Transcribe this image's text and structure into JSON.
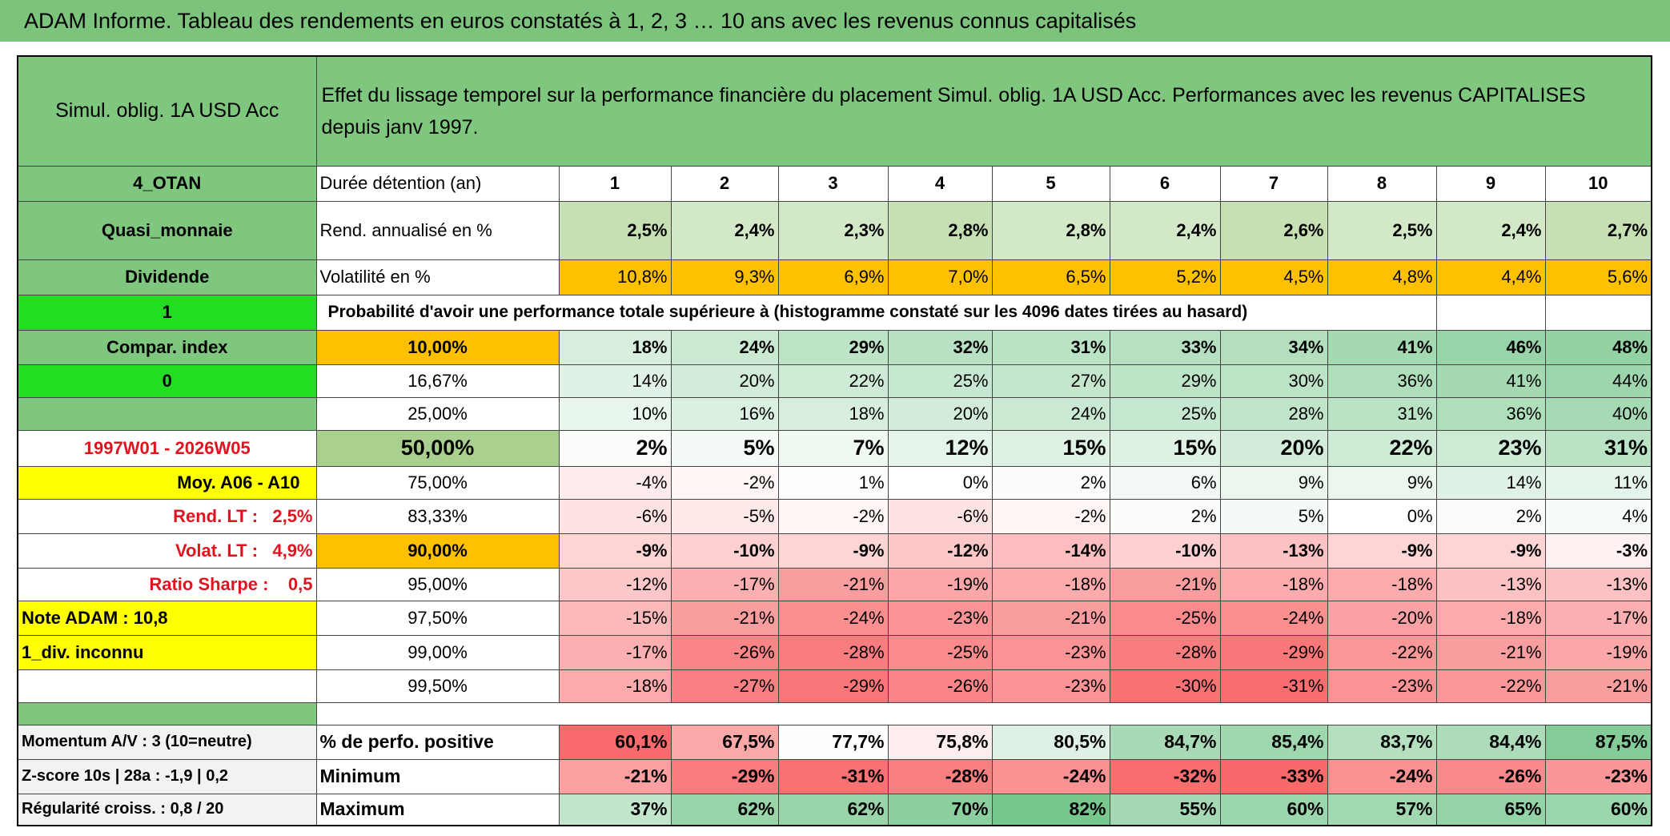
{
  "title": "ADAM Informe. Tableau des rendements en euros constatés à 1, 2, 3 … 10 ans avec les revenus connus capitalisés",
  "panel": {
    "fund": "Simul. oblig. 1A USD Acc",
    "description": "Effet du lissage temporel sur la performance financière du placement Simul. oblig. 1A USD Acc. Performances avec les revenus CAPITALISES depuis janv 1997."
  },
  "table": {
    "rows": [
      {
        "side": "4_OTAN",
        "label": "Durée détention (an)",
        "values": [
          1,
          2,
          3,
          4,
          5,
          6,
          7,
          8,
          9,
          10
        ]
      },
      {
        "side": "Quasi_monnaie",
        "label": "Rend. annualisé en %",
        "values": [
          "2,5%",
          "2,4%",
          "2,3%",
          "2,8%",
          "2,8%",
          "2,4%",
          "2,6%",
          "2,5%",
          "2,4%",
          "2,7%"
        ]
      },
      {
        "side": "Dividende",
        "label": "Volatilité en %",
        "values": [
          "10,8%",
          "9,3%",
          "6,9%",
          "7,0%",
          "6,5%",
          "5,2%",
          "4,5%",
          "4,8%",
          "4,4%",
          "5,6%"
        ]
      },
      {
        "side": "1",
        "label": "Probabilité d'avoir une performance totale supérieure à (histogramme constaté sur les 4096 dates tirées au hasard)"
      },
      {
        "side": "Compar. index",
        "label": "10,00%",
        "values": [
          "18%",
          "24%",
          "29%",
          "32%",
          "31%",
          "33%",
          "34%",
          "41%",
          "46%",
          "48%"
        ]
      },
      {
        "side": "0",
        "label": "16,67%",
        "values": [
          "14%",
          "20%",
          "22%",
          "25%",
          "27%",
          "29%",
          "30%",
          "36%",
          "41%",
          "44%"
        ]
      },
      {
        "label": "25,00%",
        "values": [
          "10%",
          "16%",
          "18%",
          "20%",
          "24%",
          "25%",
          "28%",
          "31%",
          "36%",
          "40%"
        ]
      },
      {
        "side": "1997W01 - 2026W05",
        "label": "50,00%",
        "values": [
          "2%",
          "5%",
          "7%",
          "12%",
          "15%",
          "15%",
          "20%",
          "22%",
          "23%",
          "31%"
        ]
      },
      {
        "side": "Moy. A06 - A10",
        "label": "75,00%",
        "values": [
          "-4%",
          "-2%",
          "1%",
          "0%",
          "2%",
          "6%",
          "9%",
          "9%",
          "14%",
          "11%"
        ]
      },
      {
        "side": "Rend. LT :   2,5%",
        "label": "83,33%",
        "values": [
          "-6%",
          "-5%",
          "-2%",
          "-6%",
          "-2%",
          "2%",
          "5%",
          "0%",
          "2%",
          "4%"
        ]
      },
      {
        "side": "Volat. LT :   4,9%",
        "label": "90,00%",
        "values": [
          "-9%",
          "-10%",
          "-9%",
          "-12%",
          "-14%",
          "-10%",
          "-13%",
          "-9%",
          "-9%",
          "-3%"
        ]
      },
      {
        "side": "Ratio Sharpe :    0,5",
        "label": "95,00%",
        "values": [
          "-12%",
          "-17%",
          "-21%",
          "-19%",
          "-18%",
          "-21%",
          "-18%",
          "-18%",
          "-13%",
          "-13%"
        ]
      },
      {
        "side": "Note ADAM : 10,8",
        "label": "97,50%",
        "values": [
          "-15%",
          "-21%",
          "-24%",
          "-23%",
          "-21%",
          "-25%",
          "-24%",
          "-20%",
          "-18%",
          "-17%"
        ]
      },
      {
        "side": "1_div. inconnu",
        "label": "99,00%",
        "values": [
          "-17%",
          "-26%",
          "-28%",
          "-25%",
          "-23%",
          "-28%",
          "-29%",
          "-22%",
          "-21%",
          "-19%"
        ]
      },
      {
        "label": "99,50%",
        "values": [
          "-18%",
          "-27%",
          "-29%",
          "-26%",
          "-23%",
          "-30%",
          "-31%",
          "-23%",
          "-22%",
          "-21%"
        ]
      }
    ],
    "summary_rows": [
      {
        "side": "Momentum A/V : 3 (10=neutre)",
        "label": "% de perfo. positive",
        "values": [
          "60,1%",
          "67,5%",
          "77,7%",
          "75,8%",
          "80,5%",
          "84,7%",
          "85,4%",
          "83,7%",
          "84,4%",
          "87,5%"
        ]
      },
      {
        "side": "Z-score 10s | 28a : -1,9 | 0,2",
        "label": "Minimum",
        "values": [
          "-21%",
          "-29%",
          "-31%",
          "-28%",
          "-24%",
          "-32%",
          "-33%",
          "-24%",
          "-26%",
          "-23%"
        ]
      },
      {
        "side": "Régularité croiss. : 0,8 / 20",
        "label": "Maximum",
        "values": [
          "37%",
          "62%",
          "62%",
          "70%",
          "82%",
          "55%",
          "60%",
          "57%",
          "65%",
          "60%"
        ]
      }
    ]
  }
}
